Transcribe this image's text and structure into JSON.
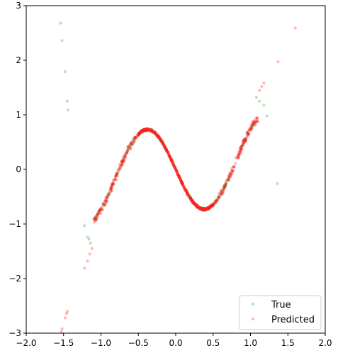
{
  "chart_data": {
    "type": "scatter",
    "title": "",
    "xlabel": "",
    "ylabel": "",
    "xlim": [
      -2.0,
      2.0
    ],
    "ylim": [
      -3,
      3
    ],
    "xticks": [
      "−2.0",
      "−1.5",
      "−1.0",
      "−0.5",
      "0.0",
      "0.5",
      "1.0",
      "1.5",
      "2.0"
    ],
    "yticks": [
      "−3",
      "−2",
      "−1",
      "0",
      "1",
      "2",
      "3"
    ],
    "grid": false,
    "legend_position": "lower-right",
    "series": [
      {
        "name": "True",
        "color": "#2ca02c",
        "alpha": 0.3,
        "outliers": [
          [
            -1.54,
            2.68
          ],
          [
            -1.52,
            2.36
          ],
          [
            -1.48,
            1.79
          ],
          [
            -1.45,
            1.25
          ],
          [
            -1.44,
            1.09
          ],
          [
            -1.22,
            -1.03
          ],
          [
            -1.18,
            -1.24
          ],
          [
            -1.16,
            -1.28
          ],
          [
            -1.14,
            -1.35
          ],
          [
            1.08,
            1.32
          ],
          [
            1.12,
            1.25
          ],
          [
            1.18,
            1.18
          ],
          [
            1.22,
            0.98
          ],
          [
            1.36,
            -0.26
          ]
        ]
      },
      {
        "name": "Predicted",
        "color": "#ff2020",
        "alpha": 0.3,
        "outliers": [
          [
            -1.53,
            -2.97
          ],
          [
            -1.52,
            -2.92
          ],
          [
            -1.48,
            -2.72
          ],
          [
            -1.46,
            -2.64
          ],
          [
            -1.45,
            -2.6
          ],
          [
            -1.22,
            -1.81
          ],
          [
            -1.18,
            -1.68
          ],
          [
            -1.15,
            -1.55
          ],
          [
            -1.12,
            -1.45
          ],
          [
            1.12,
            1.45
          ],
          [
            1.15,
            1.52
          ],
          [
            1.18,
            1.58
          ],
          [
            1.37,
            1.97
          ],
          [
            1.6,
            2.59
          ]
        ]
      }
    ],
    "dense_region": {
      "x_range": [
        -1.1,
        1.1
      ],
      "curve": "sin(2*pi*x*0.667)*0.73 approx, peak (-0.38, 0.74), trough (0.38, -0.73)"
    }
  }
}
